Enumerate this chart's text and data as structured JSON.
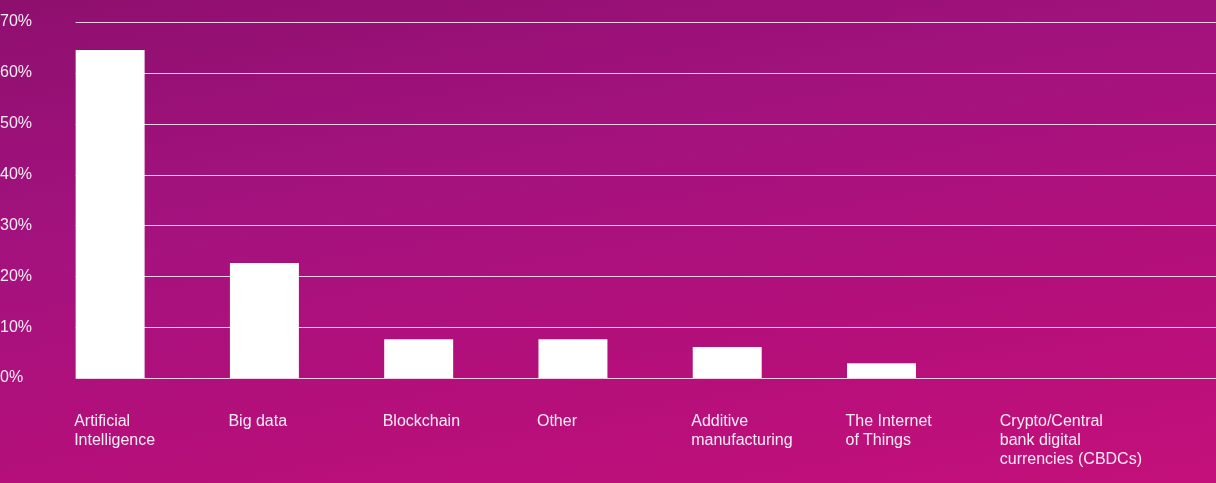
{
  "chart_data": {
    "type": "bar",
    "categories": [
      "Artificial\nIntelligence",
      "Big data",
      "Blockchain",
      "Other",
      "Additive\nmanufacturing",
      "The Internet\nof Things",
      "Crypto/Central\nbank digital\ncurrencies (CBDCs)"
    ],
    "values": [
      64.5,
      22.6,
      7.6,
      7.6,
      6.1,
      2.9,
      0
    ],
    "color": "#ffffff",
    "ylim": [
      0,
      70
    ],
    "yticks": [
      {
        "value": 0,
        "label": "0%"
      },
      {
        "value": 10,
        "label": "10%"
      },
      {
        "value": 20,
        "label": "20%"
      },
      {
        "value": 30,
        "label": "30%"
      },
      {
        "value": 40,
        "label": "40%"
      },
      {
        "value": 50,
        "label": "50%"
      },
      {
        "value": 60,
        "label": "60%"
      },
      {
        "value": 70,
        "label": "70%"
      }
    ],
    "grid": "y"
  }
}
